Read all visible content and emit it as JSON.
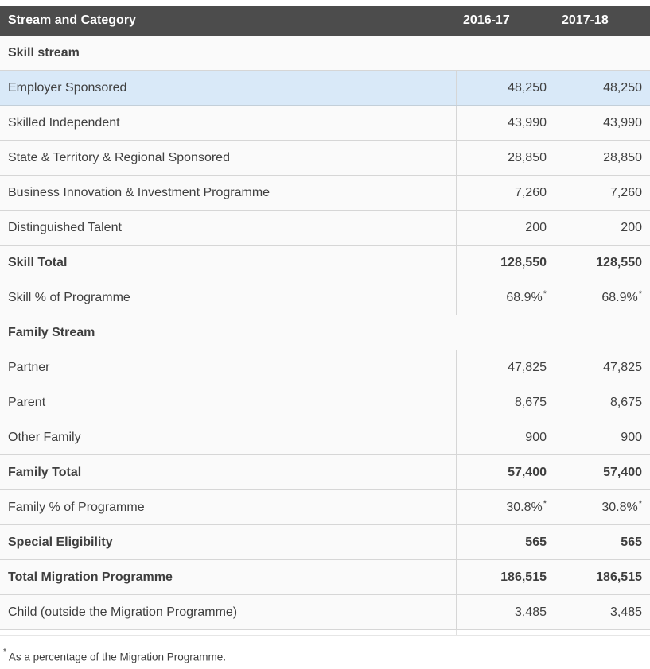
{
  "colors": {
    "header_bg": "#4c4c4c",
    "header_text": "#ffffff",
    "row_bg": "#fafafa",
    "highlight_row_bg": "#d9e9f8",
    "highlight_border": "#c3cfd9",
    "border": "#d6d6d6",
    "text": "#3f3f3f"
  },
  "table": {
    "header": {
      "category": "Stream and Category",
      "year1": "2016-17",
      "year2": "2017-18"
    },
    "rows": [
      {
        "type": "section",
        "label": "Skill stream"
      },
      {
        "type": "data",
        "highlight": true,
        "label": "Employer Sponsored",
        "v1": "48,250",
        "v2": "48,250"
      },
      {
        "type": "data",
        "label": "Skilled Independent",
        "v1": "43,990",
        "v2": "43,990"
      },
      {
        "type": "data",
        "label": "State & Territory & Regional Sponsored",
        "v1": "28,850",
        "v2": "28,850"
      },
      {
        "type": "data",
        "label": "Business Innovation & Investment Programme",
        "v1": "7,260",
        "v2": "7,260"
      },
      {
        "type": "data",
        "label": "Distinguished Talent",
        "v1": "200",
        "v2": "200"
      },
      {
        "type": "total",
        "label": "Skill Total",
        "v1": "128,550",
        "v2": "128,550"
      },
      {
        "type": "data",
        "label": "Skill % of Programme",
        "v1": "68.9%",
        "v2": "68.9%",
        "sup": true
      },
      {
        "type": "section",
        "label": "Family Stream"
      },
      {
        "type": "data",
        "label": "Partner",
        "v1": "47,825",
        "v2": "47,825"
      },
      {
        "type": "data",
        "label": "Parent",
        "v1": "8,675",
        "v2": "8,675"
      },
      {
        "type": "data",
        "label": "Other Family",
        "v1": "900",
        "v2": "900"
      },
      {
        "type": "total",
        "label": "Family Total",
        "v1": "57,400",
        "v2": "57,400"
      },
      {
        "type": "data",
        "label": "Family % of Programme",
        "v1": "30.8%",
        "v2": "30.8%",
        "sup": true
      },
      {
        "type": "total",
        "label": "Special Eligibility",
        "v1": "565",
        "v2": "565"
      },
      {
        "type": "total",
        "label": "Total Migration Programme",
        "v1": "186,515",
        "v2": "186,515"
      },
      {
        "type": "data",
        "label": "Child (outside the Migration Programme)",
        "v1": "3,485",
        "v2": "3,485"
      }
    ],
    "footnote": {
      "marker": "*",
      "text": "As a percentage of the Migration Programme."
    }
  }
}
